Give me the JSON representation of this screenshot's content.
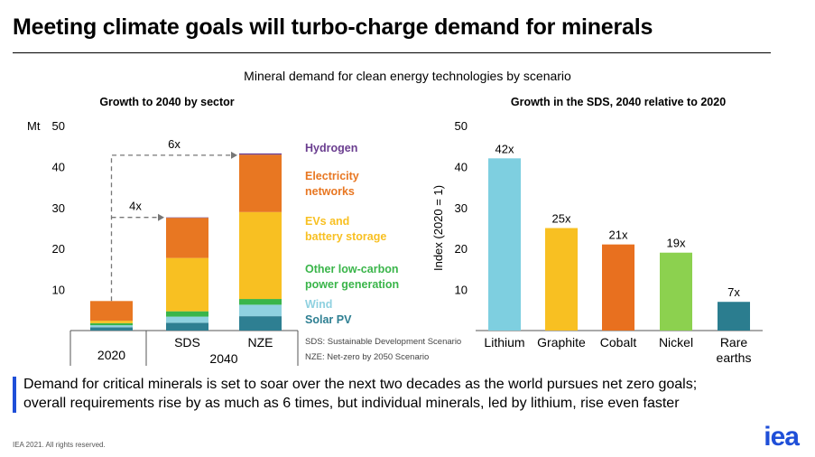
{
  "header": {
    "title": "Meeting climate goals will turbo-charge demand for minerals",
    "subtitle": "Mineral demand for clean energy technologies by scenario"
  },
  "colors": {
    "hydrogen": "#6a3d8f",
    "electricity": "#e87722",
    "evs": "#f8c022",
    "other_low_carbon": "#3ab54a",
    "wind": "#8fd1e0",
    "solar": "#2e7f92",
    "lithium": "#7ecfe0",
    "graphite": "#f8c022",
    "cobalt": "#e8701f",
    "nickel": "#8cd14f",
    "rare_earths": "#2b7d8f",
    "accent": "#1f4fd8"
  },
  "chart_data": [
    {
      "type": "bar",
      "stacked": true,
      "title": "Growth to 2040 by sector",
      "ylabel": "Mt",
      "ylim": [
        0,
        50
      ],
      "yticks": [
        10,
        20,
        30,
        40,
        50
      ],
      "categories": [
        "2020",
        "SDS",
        "NZE"
      ],
      "group_label": "2040",
      "series": [
        {
          "name": "Solar PV",
          "color_key": "solar",
          "values": [
            0.8,
            1.9,
            3.5
          ]
        },
        {
          "name": "Wind",
          "color_key": "wind",
          "values": [
            0.5,
            1.5,
            2.8
          ]
        },
        {
          "name": "Other low-carbon power generation",
          "color_key": "other_low_carbon",
          "values": [
            0.5,
            1.3,
            1.4
          ]
        },
        {
          "name": "EVs and battery storage",
          "color_key": "evs",
          "values": [
            0.6,
            13.0,
            21.2
          ]
        },
        {
          "name": "Electricity networks",
          "color_key": "electricity",
          "values": [
            4.8,
            9.8,
            14.0
          ]
        },
        {
          "name": "Hydrogen",
          "color_key": "hydrogen",
          "values": [
            0.0,
            0.1,
            0.3
          ]
        }
      ],
      "annotations": [
        {
          "label": "6x",
          "from": "2020",
          "to": "NZE"
        },
        {
          "label": "4x",
          "from": "2020",
          "to": "SDS"
        }
      ],
      "legend_order": [
        "Hydrogen",
        "Electricity networks",
        "EVs and battery storage",
        "Other low-carbon power generation",
        "Wind",
        "Solar PV"
      ],
      "notes": [
        "SDS: Sustainable Development Scenario",
        "NZE: Net-zero by 2050 Scenario"
      ]
    },
    {
      "type": "bar",
      "title": "Growth in the SDS, 2040 relative to 2020",
      "ylabel": "Index (2020 = 1)",
      "ylim": [
        0,
        50
      ],
      "yticks": [
        10,
        20,
        30,
        40,
        50
      ],
      "categories": [
        "Lithium",
        "Graphite",
        "Cobalt",
        "Nickel",
        "Rare earths"
      ],
      "values": [
        42,
        25,
        21,
        19,
        7
      ],
      "data_labels": [
        "42x",
        "25x",
        "21x",
        "19x",
        "7x"
      ],
      "color_keys": [
        "lithium",
        "graphite",
        "cobalt",
        "nickel",
        "rare_earths"
      ]
    }
  ],
  "legend": {
    "hydrogen": "Hydrogen",
    "electricity_1": "Electricity",
    "electricity_2": "networks",
    "evs_1": "EVs and",
    "evs_2": "battery storage",
    "other_1": "Other low-carbon",
    "other_2": "power generation",
    "wind": "Wind",
    "solar": "Solar PV"
  },
  "right_axis_label": "Index (2020 = 1)",
  "right_cat_labels": [
    "Lithium",
    "Graphite",
    "Cobalt",
    "Nickel",
    "Rare",
    "earths"
  ],
  "bullet": {
    "line1": "Demand for critical minerals is set to soar over the next two decades as the world pursues net zero goals;",
    "line2": "overall requirements rise by as much as 6 times, but individual minerals, led by lithium, rise even faster"
  },
  "footer": {
    "copyright": "IEA 2021. All rights reserved.",
    "logo": "iea"
  }
}
